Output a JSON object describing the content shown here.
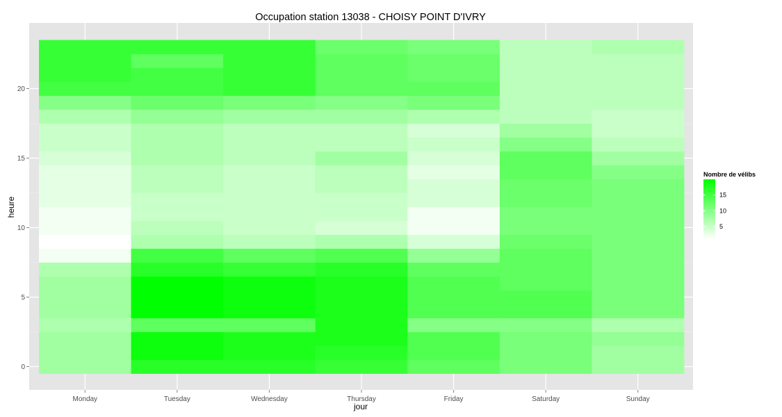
{
  "chart_data": {
    "type": "heatmap",
    "title": "Occupation station 13038 - CHOISY POINT D'IVRY",
    "xlabel": "jour",
    "ylabel": "heure",
    "x_categories": [
      "Monday",
      "Tuesday",
      "Wednesday",
      "Thursday",
      "Friday",
      "Saturday",
      "Sunday"
    ],
    "y_hours": [
      0,
      1,
      2,
      3,
      4,
      5,
      6,
      7,
      8,
      9,
      10,
      11,
      12,
      13,
      14,
      15,
      16,
      17,
      18,
      19,
      20,
      21,
      22,
      23
    ],
    "y_ticks": [
      0,
      5,
      10,
      15,
      20
    ],
    "ylim": [
      -0.5,
      23.5
    ],
    "grid": true,
    "color_low": "#ffffff",
    "color_high": "#00ff00",
    "background_color": "#e5e5e5",
    "value_range": [
      1,
      20
    ],
    "legend": {
      "title": "Nombre de vélibs",
      "position": "right",
      "ticks": [
        5,
        10,
        15
      ]
    },
    "values": [
      [
        8,
        8,
        8,
        7,
        8,
        8,
        8,
        7,
        2,
        1,
        2,
        2,
        3,
        3,
        3,
        4,
        5,
        5,
        7,
        10,
        15,
        16,
        16,
        16
      ],
      [
        17,
        19,
        19,
        13,
        20,
        20,
        20,
        17,
        15,
        7,
        6,
        5,
        5,
        6,
        6,
        7,
        7,
        7,
        9,
        12,
        15,
        15,
        13,
        16
      ],
      [
        17,
        18,
        18,
        13,
        19,
        19,
        19,
        16,
        13,
        6,
        5,
        5,
        5,
        5,
        5,
        6,
        6,
        6,
        8,
        11,
        16,
        16,
        16,
        16
      ],
      [
        16,
        17,
        18,
        18,
        18,
        18,
        18,
        17,
        14,
        7,
        4,
        5,
        5,
        6,
        6,
        8,
        6,
        6,
        8,
        10,
        13,
        13,
        13,
        12
      ],
      [
        13,
        14,
        14,
        10,
        14,
        14,
        14,
        13,
        9,
        4,
        2,
        2,
        4,
        4,
        3,
        4,
        5,
        4,
        7,
        11,
        13,
        12,
        12,
        11
      ],
      [
        11,
        11,
        11,
        10,
        14,
        14,
        13,
        13,
        13,
        12,
        11,
        11,
        12,
        12,
        13,
        13,
        10,
        8,
        6,
        6,
        6,
        6,
        6,
        6
      ],
      [
        8,
        8,
        9,
        7,
        11,
        11,
        11,
        11,
        11,
        11,
        11,
        11,
        11,
        11,
        10,
        8,
        6,
        5,
        5,
        6,
        6,
        6,
        6,
        7
      ]
    ]
  }
}
